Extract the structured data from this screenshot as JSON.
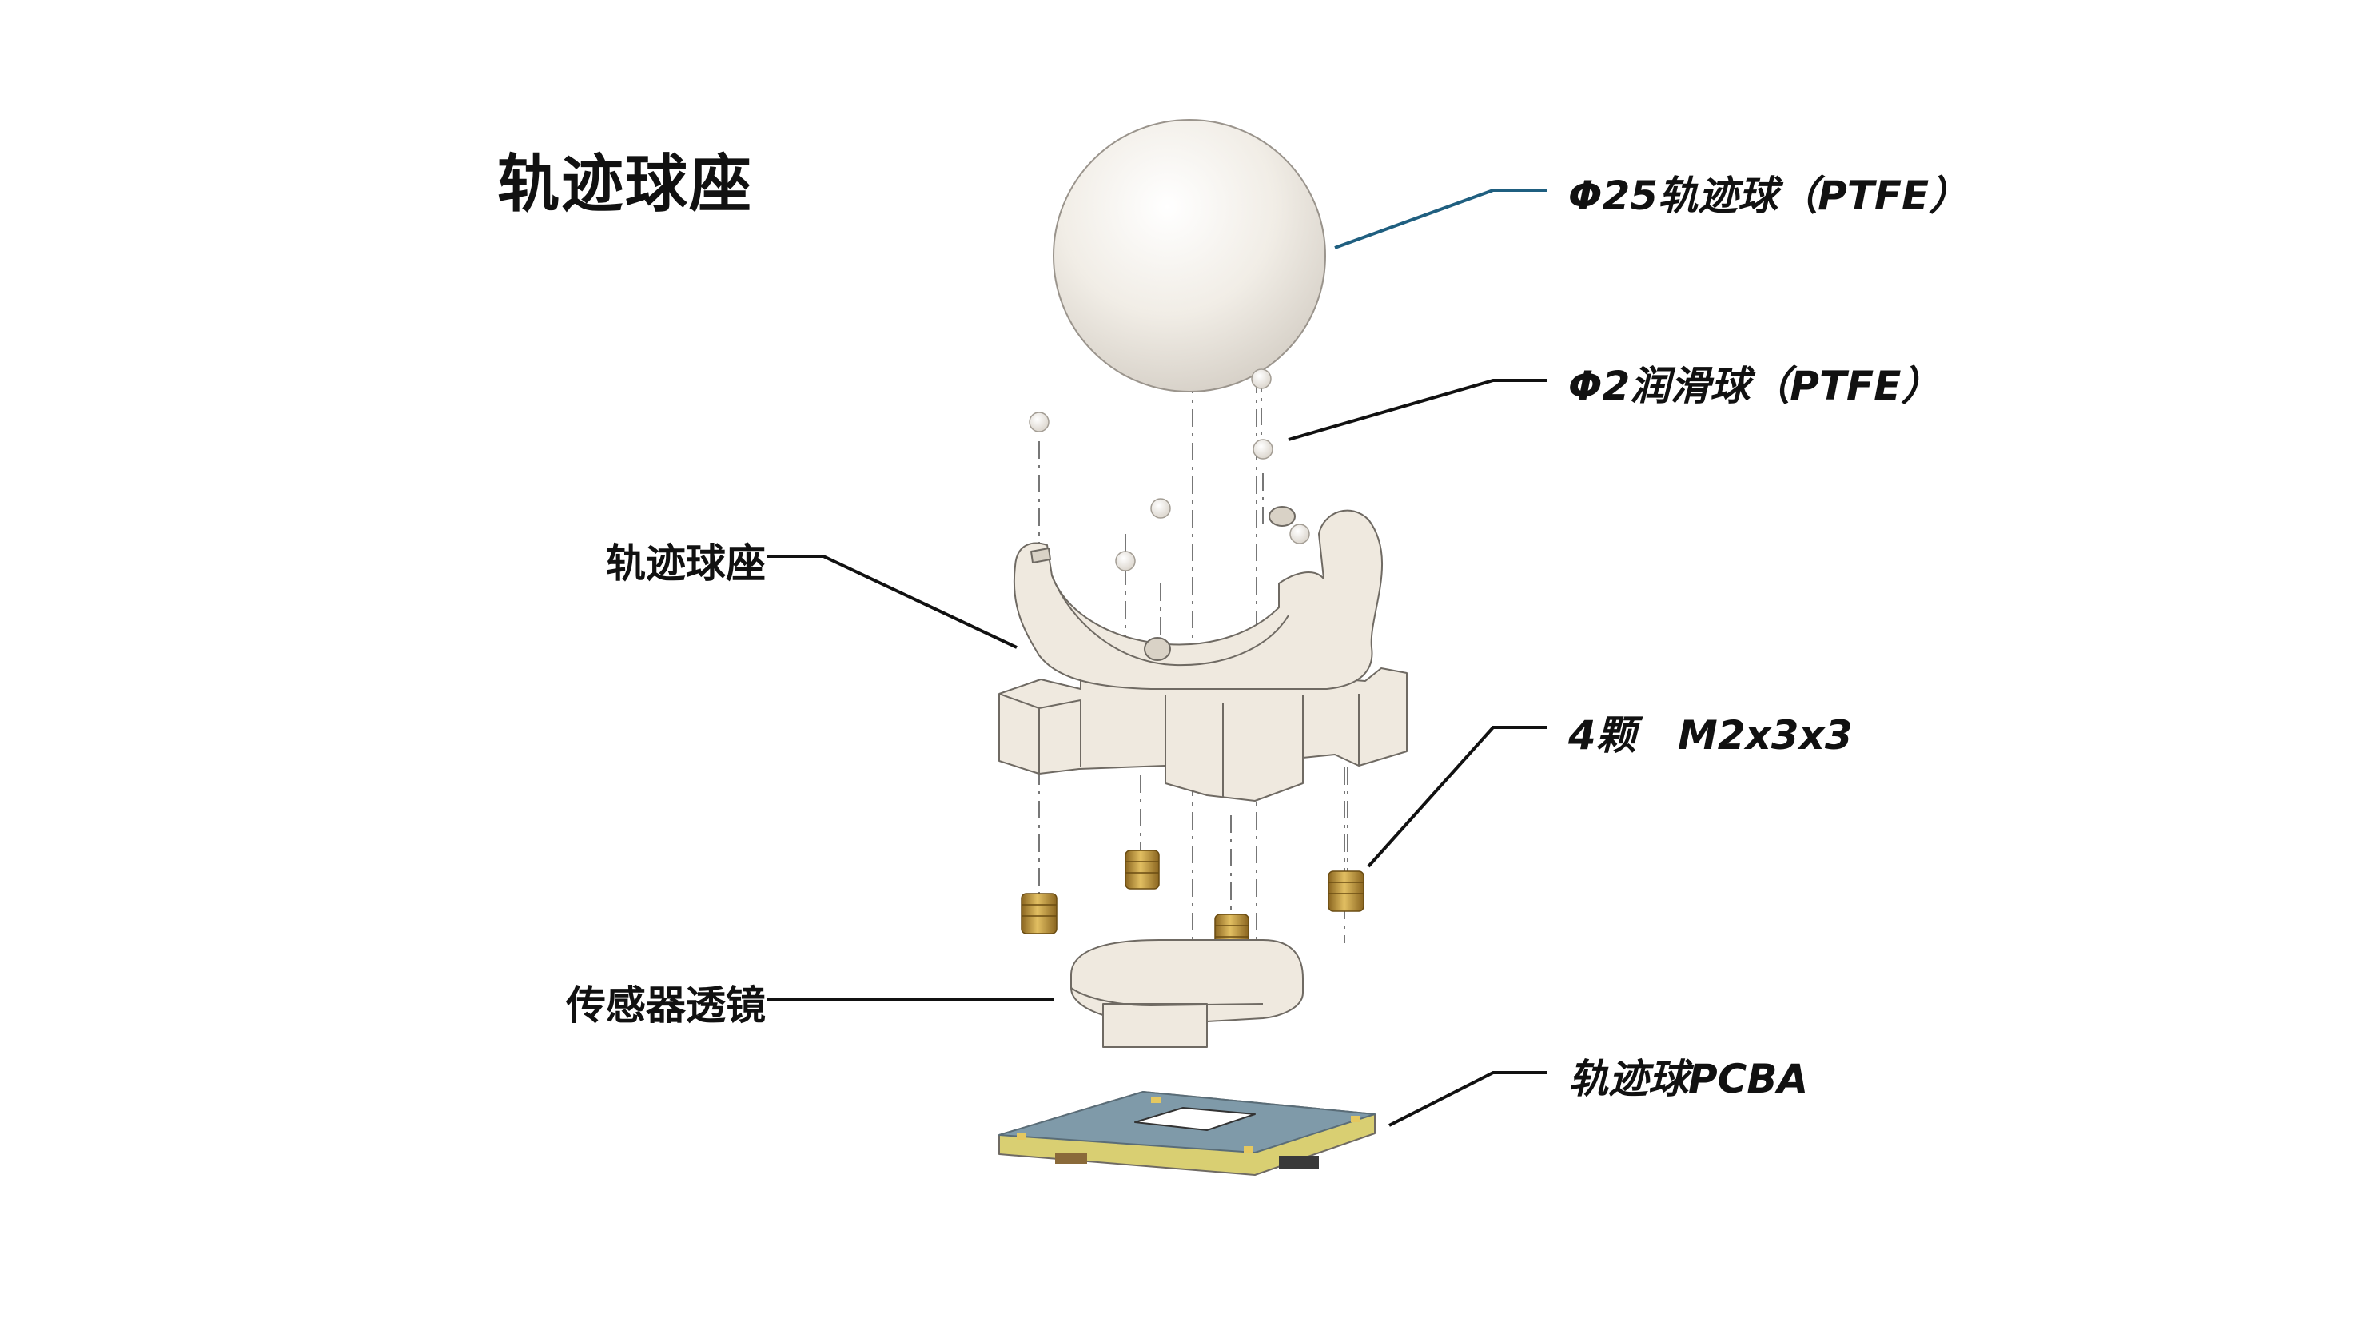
{
  "title": "轨迹球座",
  "callouts": {
    "trackball": "Φ25轨迹球（PTFE）",
    "lube_balls": "Φ2润滑球（PTFE）",
    "ball_seat": "轨迹球座",
    "inserts": "4颗   M2x3x3",
    "sensor_lens": "传感器透镜",
    "pcba": "轨迹球PCBA"
  },
  "colors": {
    "part_fill": "#efe9df",
    "part_edge": "#6f6a63",
    "brass": "#c9a040",
    "pcb_blue": "#7f9aa9",
    "pcb_edge": "#d9cf72",
    "trackball_leader": "#1f5f80",
    "leader": "#111111"
  }
}
